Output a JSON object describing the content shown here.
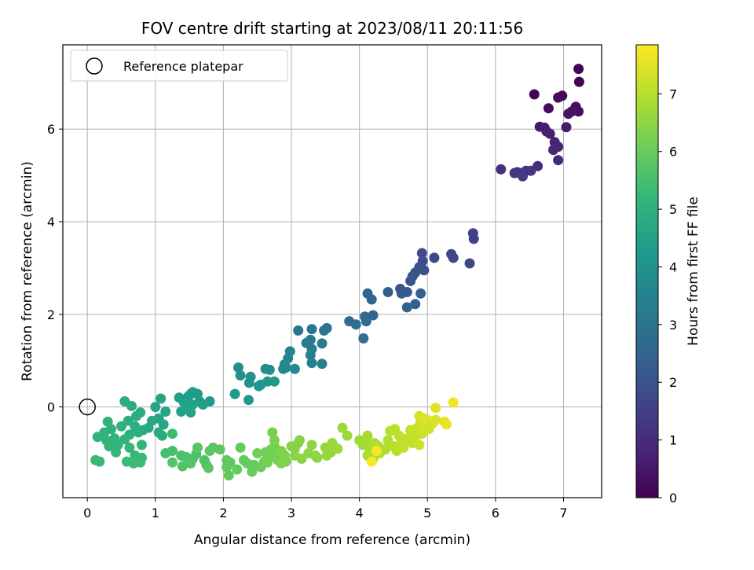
{
  "chart_data": {
    "type": "scatter",
    "title": "FOV centre drift starting at 2023/08/11 20:11:56",
    "xlabel": "Angular distance from reference (arcmin)",
    "ylabel": "Rotation from reference (arcmin)",
    "xlim": [
      -0.36,
      7.56
    ],
    "ylim": [
      -1.96,
      7.82
    ],
    "xticks": [
      0,
      1,
      2,
      3,
      4,
      5,
      6,
      7
    ],
    "yticks": [
      0,
      2,
      4,
      6
    ],
    "grid": true,
    "legend": {
      "label": "Reference platepar",
      "location": "upper-left"
    },
    "reference_point": {
      "x": 0,
      "y": 0
    },
    "colorbar": {
      "label": "Hours from first FF file",
      "range": [
        0,
        7.85
      ],
      "ticks": [
        0,
        1,
        2,
        3,
        4,
        5,
        6,
        7
      ],
      "colormap": "viridis",
      "colors": [
        "#440154",
        "#482878",
        "#3e4989",
        "#31688e",
        "#26828e",
        "#1f9e89",
        "#35b779",
        "#6ece58",
        "#b5de2b",
        "#fde725"
      ]
    },
    "points": [
      {
        "x": 7.22,
        "y": 7.3,
        "t": 0.02
      },
      {
        "x": 7.23,
        "y": 7.02,
        "t": 0.05
      },
      {
        "x": 6.57,
        "y": 6.75,
        "t": 0.1
      },
      {
        "x": 6.92,
        "y": 6.68,
        "t": 0.15
      },
      {
        "x": 6.98,
        "y": 6.72,
        "t": 0.2
      },
      {
        "x": 6.78,
        "y": 6.45,
        "t": 0.25
      },
      {
        "x": 7.18,
        "y": 6.48,
        "t": 0.3
      },
      {
        "x": 7.22,
        "y": 6.38,
        "t": 0.35
      },
      {
        "x": 7.12,
        "y": 6.38,
        "t": 0.4
      },
      {
        "x": 7.07,
        "y": 6.33,
        "t": 0.45
      },
      {
        "x": 6.65,
        "y": 6.05,
        "t": 0.5
      },
      {
        "x": 6.72,
        "y": 6.03,
        "t": 0.55
      },
      {
        "x": 7.04,
        "y": 6.04,
        "t": 0.6
      },
      {
        "x": 6.75,
        "y": 5.95,
        "t": 0.65
      },
      {
        "x": 6.8,
        "y": 5.9,
        "t": 0.7
      },
      {
        "x": 6.87,
        "y": 5.72,
        "t": 0.75
      },
      {
        "x": 6.92,
        "y": 5.62,
        "t": 0.8
      },
      {
        "x": 6.85,
        "y": 5.55,
        "t": 0.85
      },
      {
        "x": 6.92,
        "y": 5.33,
        "t": 0.9
      },
      {
        "x": 6.62,
        "y": 5.2,
        "t": 1.0
      },
      {
        "x": 6.08,
        "y": 5.13,
        "t": 1.05
      },
      {
        "x": 6.32,
        "y": 5.07,
        "t": 1.1
      },
      {
        "x": 6.45,
        "y": 5.1,
        "t": 1.15
      },
      {
        "x": 6.52,
        "y": 5.1,
        "t": 1.2
      },
      {
        "x": 6.38,
        "y": 5.05,
        "t": 1.25
      },
      {
        "x": 6.28,
        "y": 5.05,
        "t": 1.3
      },
      {
        "x": 6.4,
        "y": 4.98,
        "t": 1.35
      },
      {
        "x": 5.67,
        "y": 3.75,
        "t": 1.5
      },
      {
        "x": 5.68,
        "y": 3.63,
        "t": 1.55
      },
      {
        "x": 5.35,
        "y": 3.3,
        "t": 1.6
      },
      {
        "x": 5.38,
        "y": 3.22,
        "t": 1.65
      },
      {
        "x": 5.62,
        "y": 3.1,
        "t": 1.7
      },
      {
        "x": 5.1,
        "y": 3.22,
        "t": 1.75
      },
      {
        "x": 4.92,
        "y": 3.32,
        "t": 1.8
      },
      {
        "x": 4.93,
        "y": 3.15,
        "t": 1.85
      },
      {
        "x": 4.88,
        "y": 3.02,
        "t": 1.9
      },
      {
        "x": 4.95,
        "y": 2.95,
        "t": 1.95
      },
      {
        "x": 4.82,
        "y": 2.9,
        "t": 2.0
      },
      {
        "x": 4.78,
        "y": 2.82,
        "t": 2.05
      },
      {
        "x": 4.75,
        "y": 2.72,
        "t": 2.1
      },
      {
        "x": 4.6,
        "y": 2.55,
        "t": 2.15
      },
      {
        "x": 4.62,
        "y": 2.45,
        "t": 2.2
      },
      {
        "x": 4.7,
        "y": 2.48,
        "t": 2.25
      },
      {
        "x": 4.42,
        "y": 2.48,
        "t": 2.3
      },
      {
        "x": 4.9,
        "y": 2.45,
        "t": 2.35
      },
      {
        "x": 4.82,
        "y": 2.22,
        "t": 2.4
      },
      {
        "x": 4.7,
        "y": 2.15,
        "t": 2.45
      },
      {
        "x": 4.12,
        "y": 2.45,
        "t": 2.5
      },
      {
        "x": 4.18,
        "y": 2.32,
        "t": 2.55
      },
      {
        "x": 4.2,
        "y": 1.98,
        "t": 2.6
      },
      {
        "x": 4.08,
        "y": 1.95,
        "t": 2.65
      },
      {
        "x": 4.1,
        "y": 1.85,
        "t": 2.7
      },
      {
        "x": 3.85,
        "y": 1.85,
        "t": 2.75
      },
      {
        "x": 3.95,
        "y": 1.78,
        "t": 2.8
      },
      {
        "x": 4.06,
        "y": 1.48,
        "t": 2.85
      },
      {
        "x": 3.52,
        "y": 1.7,
        "t": 2.95
      },
      {
        "x": 3.48,
        "y": 1.65,
        "t": 3.0
      },
      {
        "x": 3.3,
        "y": 1.68,
        "t": 3.05
      },
      {
        "x": 3.1,
        "y": 1.65,
        "t": 3.1
      },
      {
        "x": 3.28,
        "y": 1.45,
        "t": 3.15
      },
      {
        "x": 3.22,
        "y": 1.38,
        "t": 3.2
      },
      {
        "x": 3.45,
        "y": 1.37,
        "t": 3.25
      },
      {
        "x": 3.3,
        "y": 1.25,
        "t": 3.3
      },
      {
        "x": 3.28,
        "y": 1.12,
        "t": 3.35
      },
      {
        "x": 3.3,
        "y": 0.95,
        "t": 3.4
      },
      {
        "x": 3.45,
        "y": 0.93,
        "t": 3.45
      },
      {
        "x": 2.98,
        "y": 1.2,
        "t": 3.5
      },
      {
        "x": 2.95,
        "y": 1.05,
        "t": 3.55
      },
      {
        "x": 2.9,
        "y": 0.92,
        "t": 3.6
      },
      {
        "x": 2.92,
        "y": 0.85,
        "t": 3.65
      },
      {
        "x": 2.88,
        "y": 0.82,
        "t": 3.7
      },
      {
        "x": 3.05,
        "y": 0.82,
        "t": 3.75
      },
      {
        "x": 2.62,
        "y": 0.82,
        "t": 3.8
      },
      {
        "x": 2.68,
        "y": 0.8,
        "t": 3.85
      },
      {
        "x": 2.22,
        "y": 0.85,
        "t": 3.9
      },
      {
        "x": 2.25,
        "y": 0.68,
        "t": 3.95
      },
      {
        "x": 2.4,
        "y": 0.65,
        "t": 4.0
      },
      {
        "x": 2.38,
        "y": 0.52,
        "t": 4.05
      },
      {
        "x": 2.52,
        "y": 0.45,
        "t": 4.1
      },
      {
        "x": 2.55,
        "y": 0.48,
        "t": 4.12
      },
      {
        "x": 2.65,
        "y": 0.55,
        "t": 4.15
      },
      {
        "x": 2.75,
        "y": 0.55,
        "t": 4.18
      },
      {
        "x": 2.17,
        "y": 0.28,
        "t": 4.2
      },
      {
        "x": 2.37,
        "y": 0.15,
        "t": 4.22
      },
      {
        "x": 1.8,
        "y": 0.12,
        "t": 4.25
      },
      {
        "x": 1.62,
        "y": 0.28,
        "t": 4.28
      },
      {
        "x": 1.55,
        "y": 0.32,
        "t": 4.3
      },
      {
        "x": 1.52,
        "y": 0.28,
        "t": 4.32
      },
      {
        "x": 1.48,
        "y": 0.22,
        "t": 4.35
      },
      {
        "x": 1.65,
        "y": 0.12,
        "t": 4.38
      },
      {
        "x": 1.7,
        "y": 0.05,
        "t": 4.4
      },
      {
        "x": 1.35,
        "y": 0.2,
        "t": 4.42
      },
      {
        "x": 1.42,
        "y": 0.1,
        "t": 4.45
      },
      {
        "x": 1.45,
        "y": -0.05,
        "t": 4.48
      },
      {
        "x": 1.55,
        "y": 0.05,
        "t": 4.5
      },
      {
        "x": 1.38,
        "y": -0.1,
        "t": 4.52
      },
      {
        "x": 1.52,
        "y": -0.12,
        "t": 4.55
      },
      {
        "x": 1.08,
        "y": 0.18,
        "t": 4.58
      },
      {
        "x": 1.0,
        "y": 0.0,
        "t": 4.6
      },
      {
        "x": 1.15,
        "y": -0.1,
        "t": 4.62
      },
      {
        "x": 1.05,
        "y": -0.25,
        "t": 4.65
      },
      {
        "x": 1.12,
        "y": -0.38,
        "t": 4.68
      },
      {
        "x": 0.95,
        "y": -0.3,
        "t": 4.7
      },
      {
        "x": 0.9,
        "y": -0.45,
        "t": 4.72
      },
      {
        "x": 0.82,
        "y": -0.5,
        "t": 4.75
      },
      {
        "x": 1.05,
        "y": -0.55,
        "t": 4.78
      },
      {
        "x": 1.1,
        "y": -0.62,
        "t": 4.8
      },
      {
        "x": 0.55,
        "y": 0.12,
        "t": 4.82
      },
      {
        "x": 0.65,
        "y": 0.02,
        "t": 4.84
      },
      {
        "x": 0.78,
        "y": -0.12,
        "t": 4.86
      },
      {
        "x": 0.72,
        "y": -0.2,
        "t": 4.88
      },
      {
        "x": 0.6,
        "y": -0.3,
        "t": 4.9
      },
      {
        "x": 0.7,
        "y": -0.42,
        "t": 4.92
      },
      {
        "x": 0.75,
        "y": -0.55,
        "t": 4.94
      },
      {
        "x": 0.62,
        "y": -0.6,
        "t": 4.96
      },
      {
        "x": 0.5,
        "y": -0.42,
        "t": 4.98
      },
      {
        "x": 0.35,
        "y": -0.48,
        "t": 5.0
      },
      {
        "x": 0.3,
        "y": -0.32,
        "t": 5.02
      },
      {
        "x": 0.25,
        "y": -0.55,
        "t": 5.04
      },
      {
        "x": 0.15,
        "y": -0.65,
        "t": 5.06
      },
      {
        "x": 0.28,
        "y": -0.72,
        "t": 5.08
      },
      {
        "x": 0.4,
        "y": -0.68,
        "t": 5.1
      },
      {
        "x": 0.55,
        "y": -0.7,
        "t": 5.12
      },
      {
        "x": 0.45,
        "y": -0.82,
        "t": 5.14
      },
      {
        "x": 0.32,
        "y": -0.85,
        "t": 5.16
      },
      {
        "x": 0.62,
        "y": -0.88,
        "t": 5.18
      },
      {
        "x": 0.8,
        "y": -0.82,
        "t": 5.2
      },
      {
        "x": 0.42,
        "y": -0.98,
        "t": 5.22
      },
      {
        "x": 0.7,
        "y": -1.05,
        "t": 5.24
      },
      {
        "x": 0.8,
        "y": -1.1,
        "t": 5.26
      },
      {
        "x": 0.12,
        "y": -1.15,
        "t": 5.28
      },
      {
        "x": 0.18,
        "y": -1.18,
        "t": 5.3
      },
      {
        "x": 0.58,
        "y": -1.18,
        "t": 5.32
      },
      {
        "x": 0.68,
        "y": -1.22,
        "t": 5.34
      },
      {
        "x": 0.78,
        "y": -1.2,
        "t": 5.36
      },
      {
        "x": 1.25,
        "y": -0.58,
        "t": 5.4
      },
      {
        "x": 1.15,
        "y": -1.0,
        "t": 5.45
      },
      {
        "x": 1.25,
        "y": -0.95,
        "t": 5.5
      },
      {
        "x": 1.38,
        "y": -1.05,
        "t": 5.55
      },
      {
        "x": 1.45,
        "y": -1.08,
        "t": 5.6
      },
      {
        "x": 1.55,
        "y": -1.12,
        "t": 5.62
      },
      {
        "x": 1.6,
        "y": -1.02,
        "t": 5.64
      },
      {
        "x": 1.72,
        "y": -1.15,
        "t": 5.66
      },
      {
        "x": 1.25,
        "y": -1.2,
        "t": 5.68
      },
      {
        "x": 1.4,
        "y": -1.28,
        "t": 5.7
      },
      {
        "x": 1.52,
        "y": -1.22,
        "t": 5.72
      },
      {
        "x": 1.75,
        "y": -1.25,
        "t": 5.74
      },
      {
        "x": 1.78,
        "y": -1.32,
        "t": 5.76
      },
      {
        "x": 1.62,
        "y": -0.88,
        "t": 5.78
      },
      {
        "x": 1.8,
        "y": -0.95,
        "t": 5.8
      },
      {
        "x": 1.85,
        "y": -0.88,
        "t": 5.82
      },
      {
        "x": 1.95,
        "y": -0.92,
        "t": 5.84
      },
      {
        "x": 2.05,
        "y": -1.15,
        "t": 5.86
      },
      {
        "x": 2.1,
        "y": -1.2,
        "t": 5.88
      },
      {
        "x": 2.05,
        "y": -1.3,
        "t": 5.9
      },
      {
        "x": 2.08,
        "y": -1.48,
        "t": 5.92
      },
      {
        "x": 2.2,
        "y": -1.35,
        "t": 5.94
      },
      {
        "x": 2.25,
        "y": -0.88,
        "t": 5.96
      },
      {
        "x": 2.3,
        "y": -1.15,
        "t": 5.98
      },
      {
        "x": 2.35,
        "y": -1.22,
        "t": 6.0
      },
      {
        "x": 2.45,
        "y": -1.25,
        "t": 6.02
      },
      {
        "x": 2.42,
        "y": -1.4,
        "t": 6.04
      },
      {
        "x": 2.55,
        "y": -1.3,
        "t": 6.06
      },
      {
        "x": 2.6,
        "y": -1.18,
        "t": 6.08
      },
      {
        "x": 2.5,
        "y": -1.0,
        "t": 6.1
      },
      {
        "x": 2.62,
        "y": -0.98,
        "t": 6.12
      },
      {
        "x": 2.7,
        "y": -0.92,
        "t": 6.14
      },
      {
        "x": 2.75,
        "y": -0.85,
        "t": 6.16
      },
      {
        "x": 2.72,
        "y": -1.05,
        "t": 6.18
      },
      {
        "x": 2.65,
        "y": -1.2,
        "t": 6.2
      },
      {
        "x": 2.8,
        "y": -1.15,
        "t": 6.22
      },
      {
        "x": 2.72,
        "y": -0.55,
        "t": 6.24
      },
      {
        "x": 2.75,
        "y": -0.72,
        "t": 6.26
      },
      {
        "x": 2.85,
        "y": -0.95,
        "t": 6.28
      },
      {
        "x": 2.9,
        "y": -1.05,
        "t": 6.3
      },
      {
        "x": 2.92,
        "y": -1.18,
        "t": 6.32
      },
      {
        "x": 2.85,
        "y": -1.22,
        "t": 6.34
      },
      {
        "x": 3.0,
        "y": -0.85,
        "t": 6.36
      },
      {
        "x": 3.05,
        "y": -0.9,
        "t": 6.38
      },
      {
        "x": 3.1,
        "y": -0.78,
        "t": 6.4
      },
      {
        "x": 3.12,
        "y": -0.72,
        "t": 6.42
      },
      {
        "x": 3.05,
        "y": -1.05,
        "t": 6.44
      },
      {
        "x": 3.15,
        "y": -1.12,
        "t": 6.46
      },
      {
        "x": 3.25,
        "y": -1.0,
        "t": 6.48
      },
      {
        "x": 3.3,
        "y": -0.82,
        "t": 6.5
      },
      {
        "x": 3.35,
        "y": -1.05,
        "t": 6.52
      },
      {
        "x": 3.38,
        "y": -1.1,
        "t": 6.54
      },
      {
        "x": 3.5,
        "y": -0.88,
        "t": 6.56
      },
      {
        "x": 3.52,
        "y": -1.05,
        "t": 6.58
      },
      {
        "x": 3.58,
        "y": -0.98,
        "t": 6.6
      },
      {
        "x": 3.6,
        "y": -0.78,
        "t": 6.62
      },
      {
        "x": 3.75,
        "y": -0.45,
        "t": 6.64
      },
      {
        "x": 3.82,
        "y": -0.62,
        "t": 6.66
      },
      {
        "x": 3.68,
        "y": -0.9,
        "t": 6.68
      },
      {
        "x": 4.0,
        "y": -0.72,
        "t": 6.72
      },
      {
        "x": 4.05,
        "y": -0.82,
        "t": 6.75
      },
      {
        "x": 4.08,
        "y": -0.75,
        "t": 6.78
      },
      {
        "x": 4.12,
        "y": -0.62,
        "t": 6.8
      },
      {
        "x": 4.15,
        "y": -0.9,
        "t": 6.82
      },
      {
        "x": 4.18,
        "y": -0.95,
        "t": 6.84
      },
      {
        "x": 4.12,
        "y": -1.05,
        "t": 6.86
      },
      {
        "x": 4.2,
        "y": -1.12,
        "t": 6.88
      },
      {
        "x": 4.22,
        "y": -0.78,
        "t": 6.9
      },
      {
        "x": 4.28,
        "y": -0.85,
        "t": 6.92
      },
      {
        "x": 4.3,
        "y": -1.0,
        "t": 6.94
      },
      {
        "x": 4.38,
        "y": -0.92,
        "t": 6.96
      },
      {
        "x": 4.42,
        "y": -0.72,
        "t": 6.98
      },
      {
        "x": 4.45,
        "y": -0.52,
        "t": 7.0
      },
      {
        "x": 4.5,
        "y": -0.85,
        "t": 7.02
      },
      {
        "x": 4.55,
        "y": -0.95,
        "t": 7.04
      },
      {
        "x": 4.52,
        "y": -0.48,
        "t": 7.06
      },
      {
        "x": 4.58,
        "y": -0.62,
        "t": 7.08
      },
      {
        "x": 4.62,
        "y": -0.75,
        "t": 7.1
      },
      {
        "x": 4.65,
        "y": -0.88,
        "t": 7.12
      },
      {
        "x": 4.7,
        "y": -0.68,
        "t": 7.14
      },
      {
        "x": 4.75,
        "y": -0.5,
        "t": 7.16
      },
      {
        "x": 4.78,
        "y": -0.78,
        "t": 7.18
      },
      {
        "x": 4.82,
        "y": -0.65,
        "t": 7.2
      },
      {
        "x": 4.85,
        "y": -0.45,
        "t": 7.22
      },
      {
        "x": 4.88,
        "y": -0.82,
        "t": 7.24
      },
      {
        "x": 4.9,
        "y": -0.32,
        "t": 7.26
      },
      {
        "x": 4.92,
        "y": -0.58,
        "t": 7.28
      },
      {
        "x": 4.95,
        "y": -0.42,
        "t": 7.3
      },
      {
        "x": 5.0,
        "y": -0.28,
        "t": 7.32
      },
      {
        "x": 5.02,
        "y": -0.48,
        "t": 7.34
      },
      {
        "x": 5.08,
        "y": -0.35,
        "t": 7.36
      },
      {
        "x": 4.88,
        "y": -0.2,
        "t": 7.38
      },
      {
        "x": 4.95,
        "y": -0.25,
        "t": 7.42
      },
      {
        "x": 5.12,
        "y": -0.28,
        "t": 7.45
      },
      {
        "x": 5.12,
        "y": -0.02,
        "t": 7.5
      },
      {
        "x": 5.25,
        "y": -0.32,
        "t": 7.55
      },
      {
        "x": 5.28,
        "y": -0.38,
        "t": 7.6
      },
      {
        "x": 5.38,
        "y": 0.1,
        "t": 7.7
      },
      {
        "x": 4.25,
        "y": -0.95,
        "t": 7.75
      },
      {
        "x": 4.18,
        "y": -1.18,
        "t": 7.8
      }
    ]
  }
}
